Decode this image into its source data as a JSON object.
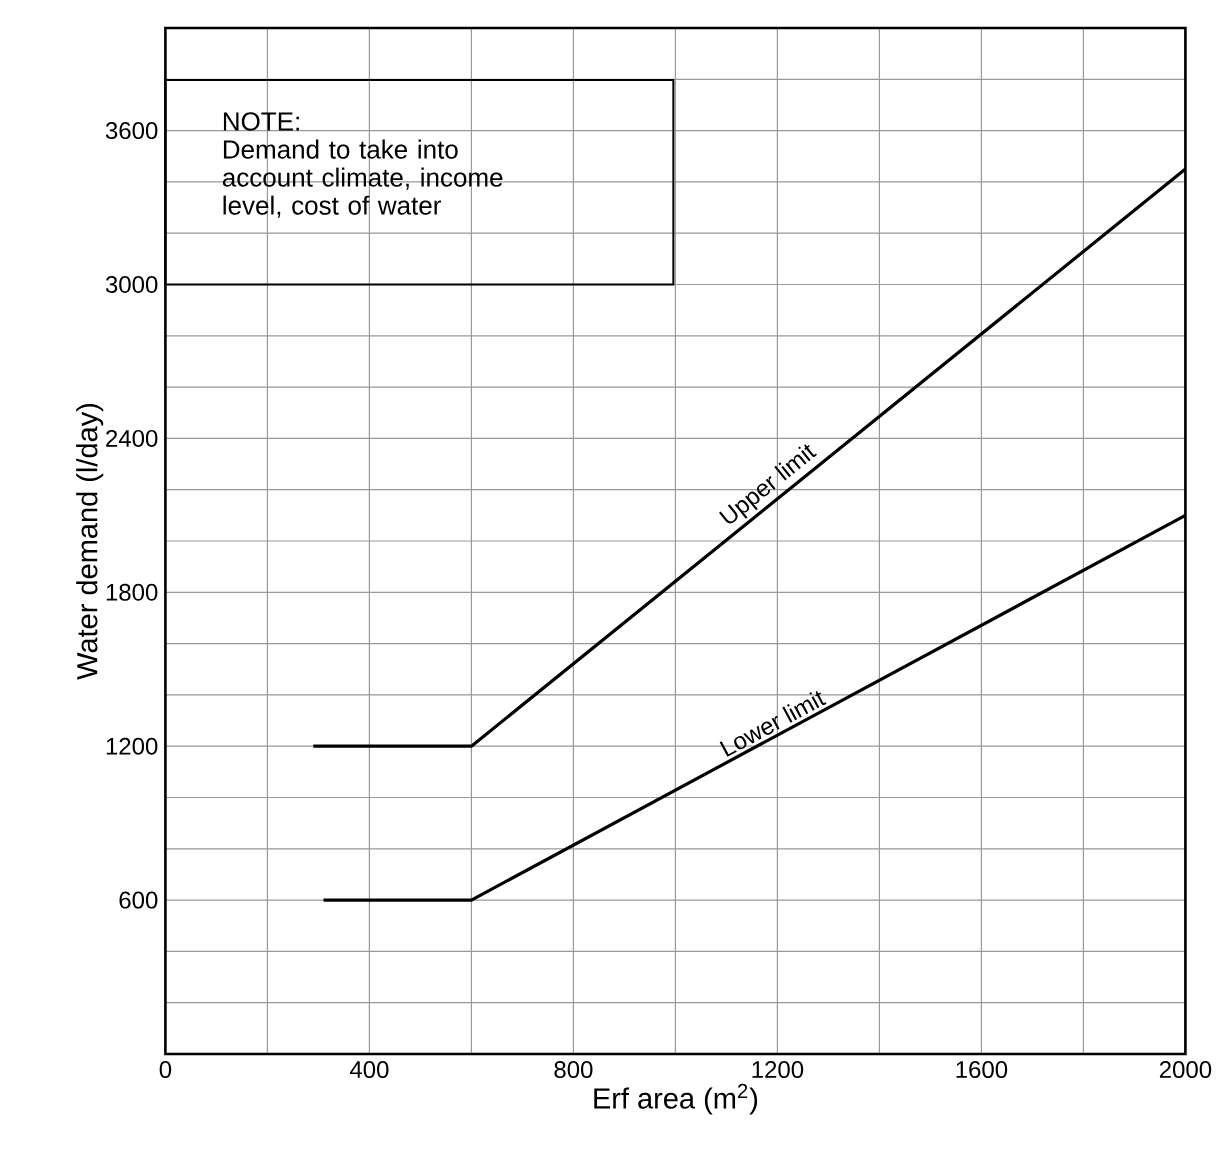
{
  "chart_data": {
    "type": "line",
    "xlabel": "Erf area (m$^{2}$)",
    "ylabel": "Water demand (l/day)",
    "series": [
      {
        "name": "Upper limit",
        "color": "#000000",
        "x": [
          290,
          600,
          2000
        ],
        "values": [
          1200,
          1200,
          3450
        ]
      },
      {
        "name": "Lower limit",
        "color": "#000000",
        "x": [
          310,
          600,
          2000
        ],
        "values": [
          600,
          600,
          2100
        ]
      }
    ],
    "annotations": [
      "NOTE:",
      "Demand to take into account climate, income level, cost of water"
    ],
    "xlim": [
      0,
      2000
    ],
    "ylim": [
      0,
      4000
    ],
    "xticks": [
      0,
      {
        "value": 200,
        "label": null
      },
      400,
      {
        "value": 600,
        "label": null
      },
      800,
      {
        "value": 1000,
        "label": null
      },
      1200,
      {
        "value": 1400,
        "label": null
      },
      1600,
      {
        "value": 1800,
        "label": null
      },
      2000
    ],
    "yticks": [
      {
        "value": 0,
        "label": null
      },
      {
        "value": 200,
        "label": null
      },
      {
        "value": 400,
        "label": null
      },
      600,
      {
        "value": 800,
        "label": null
      },
      {
        "value": 1000,
        "label": null
      },
      1200,
      {
        "value": 1400,
        "label": null
      },
      {
        "value": 1600,
        "label": null
      },
      1800,
      {
        "value": 2000,
        "label": null
      },
      {
        "value": 2200,
        "label": null
      },
      2400,
      {
        "value": 2600,
        "label": null
      },
      {
        "value": 2800,
        "label": null
      },
      3000,
      {
        "value": 3200,
        "label": null
      },
      {
        "value": 3400,
        "label": null
      },
      3600,
      {
        "value": 3800,
        "label": null
      },
      {
        "value": 4000,
        "label": null
      }
    ],
    "grid": true,
    "marker": "none",
    "line_style": "solid"
  }
}
